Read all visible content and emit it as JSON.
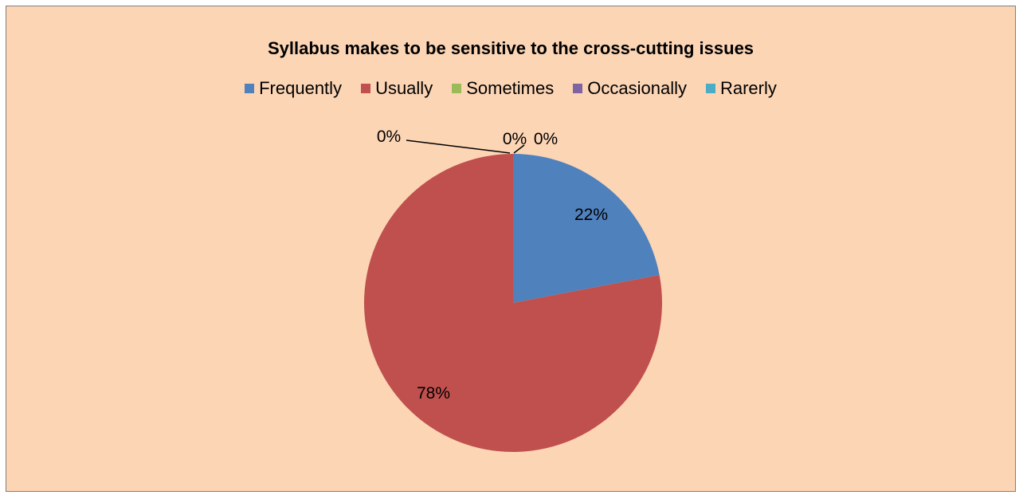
{
  "chart_data": {
    "type": "pie",
    "title": "Syllabus makes to be sensitive to the cross-cutting issues",
    "legend_position": "top",
    "categories": [
      "Frequently",
      "Usually",
      "Sometimes",
      "Occasionally",
      "Rarerly"
    ],
    "values": [
      22,
      78,
      0,
      0,
      0
    ],
    "data_labels": [
      "22%",
      "78%",
      "0%",
      "0%",
      "0%"
    ],
    "colors": [
      "#4f81bd",
      "#c0504d",
      "#9bbb59",
      "#8064a2",
      "#4bacc6"
    ],
    "background": "#fcd5b5"
  }
}
